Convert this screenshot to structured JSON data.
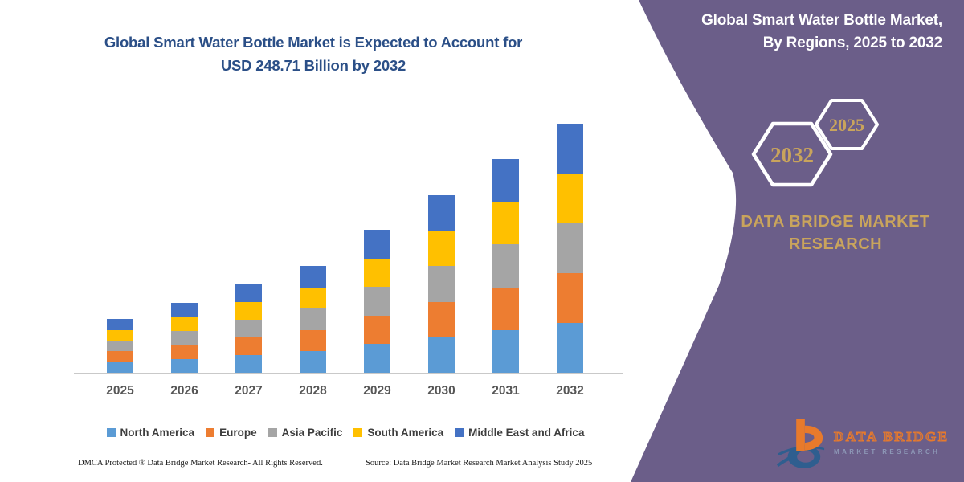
{
  "page": {
    "background": "#ffffff"
  },
  "chart_data": {
    "type": "bar",
    "stacked": true,
    "unit": "USD Billion",
    "title": "Global Smart Water Bottle Market is Expected to Account for USD 248.71 Billion by 2032",
    "categories": [
      "2025",
      "2026",
      "2027",
      "2028",
      "2029",
      "2030",
      "2031",
      "2032"
    ],
    "series": [
      {
        "name": "North America",
        "color": "#5B9BD5",
        "values": [
          10.7,
          14.0,
          17.7,
          21.3,
          28.6,
          35.5,
          42.7,
          49.74
        ]
      },
      {
        "name": "Europe",
        "color": "#ED7D31",
        "values": [
          10.7,
          14.0,
          17.7,
          21.3,
          28.6,
          35.5,
          42.7,
          49.74
        ]
      },
      {
        "name": "Asia Pacific",
        "color": "#A5A5A5",
        "values": [
          10.7,
          14.0,
          17.7,
          21.3,
          28.6,
          35.5,
          42.7,
          49.74
        ]
      },
      {
        "name": "South America",
        "color": "#FFC000",
        "values": [
          10.7,
          14.0,
          17.7,
          21.3,
          28.6,
          35.5,
          42.7,
          49.74
        ]
      },
      {
        "name": "Middle East and Africa",
        "color": "#4472C4",
        "values": [
          10.7,
          14.0,
          17.7,
          21.3,
          28.6,
          35.5,
          42.7,
          49.75
        ]
      }
    ],
    "totals": [
      53.5,
      70.0,
      88.5,
      106.5,
      143.0,
      177.5,
      213.5,
      248.71
    ],
    "ylim": [
      0,
      260
    ],
    "value_axis_visible": false,
    "gridlines": false,
    "legend_position": "bottom"
  },
  "header": {
    "title_line1": "Global Smart Water Bottle Market is Expected to Account for",
    "title_line2": "USD 248.71 Billion by 2032",
    "title_color": "#2B4F87"
  },
  "footer": {
    "dmca": "DMCA Protected ® Data Bridge Market Research-  All Rights Reserved.",
    "source": "Source: Data Bridge Market Research  Market Analysis Study 2025"
  },
  "right_panel": {
    "panel_color": "#6B5E89",
    "accent_gold": "#C9A45C",
    "title_line1": "Global Smart Water Bottle Market,",
    "title_line2": "By Regions, 2025 to 2032",
    "hexagons": {
      "back_label": "2032",
      "front_label": "2025"
    },
    "brand_line1": "DATA BRIDGE MARKET",
    "brand_line2": "RESEARCH",
    "logo": {
      "title": "DATA BRIDGE",
      "subtitle": "MARKET RESEARCH",
      "orange": "#E87A2B",
      "blue": "#2F5E8F"
    }
  }
}
